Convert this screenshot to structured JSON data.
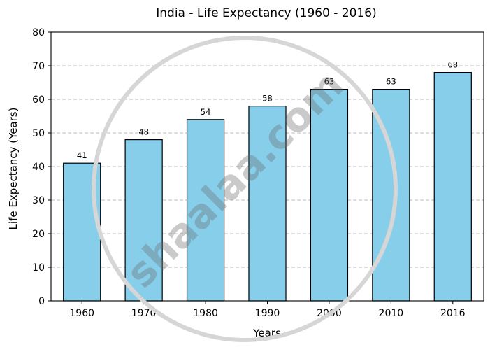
{
  "chart_data": {
    "type": "bar",
    "title": "India - Life Expectancy (1960 - 2016)",
    "xlabel": "Years",
    "ylabel": "Life Expectancy (Years)",
    "categories": [
      "1960",
      "1970",
      "1980",
      "1990",
      "2000",
      "2010",
      "2016"
    ],
    "values": [
      41,
      48,
      54,
      58,
      63,
      63,
      68
    ],
    "ylim": [
      0,
      80
    ],
    "yticks": [
      0,
      10,
      20,
      30,
      40,
      50,
      60,
      70,
      80
    ],
    "grid": "horizontal dashed",
    "bar_color": "#87CEEB",
    "edge_color": "#000000"
  },
  "watermark": {
    "text": "shaalaa.com",
    "color": "#6b6b6b"
  }
}
